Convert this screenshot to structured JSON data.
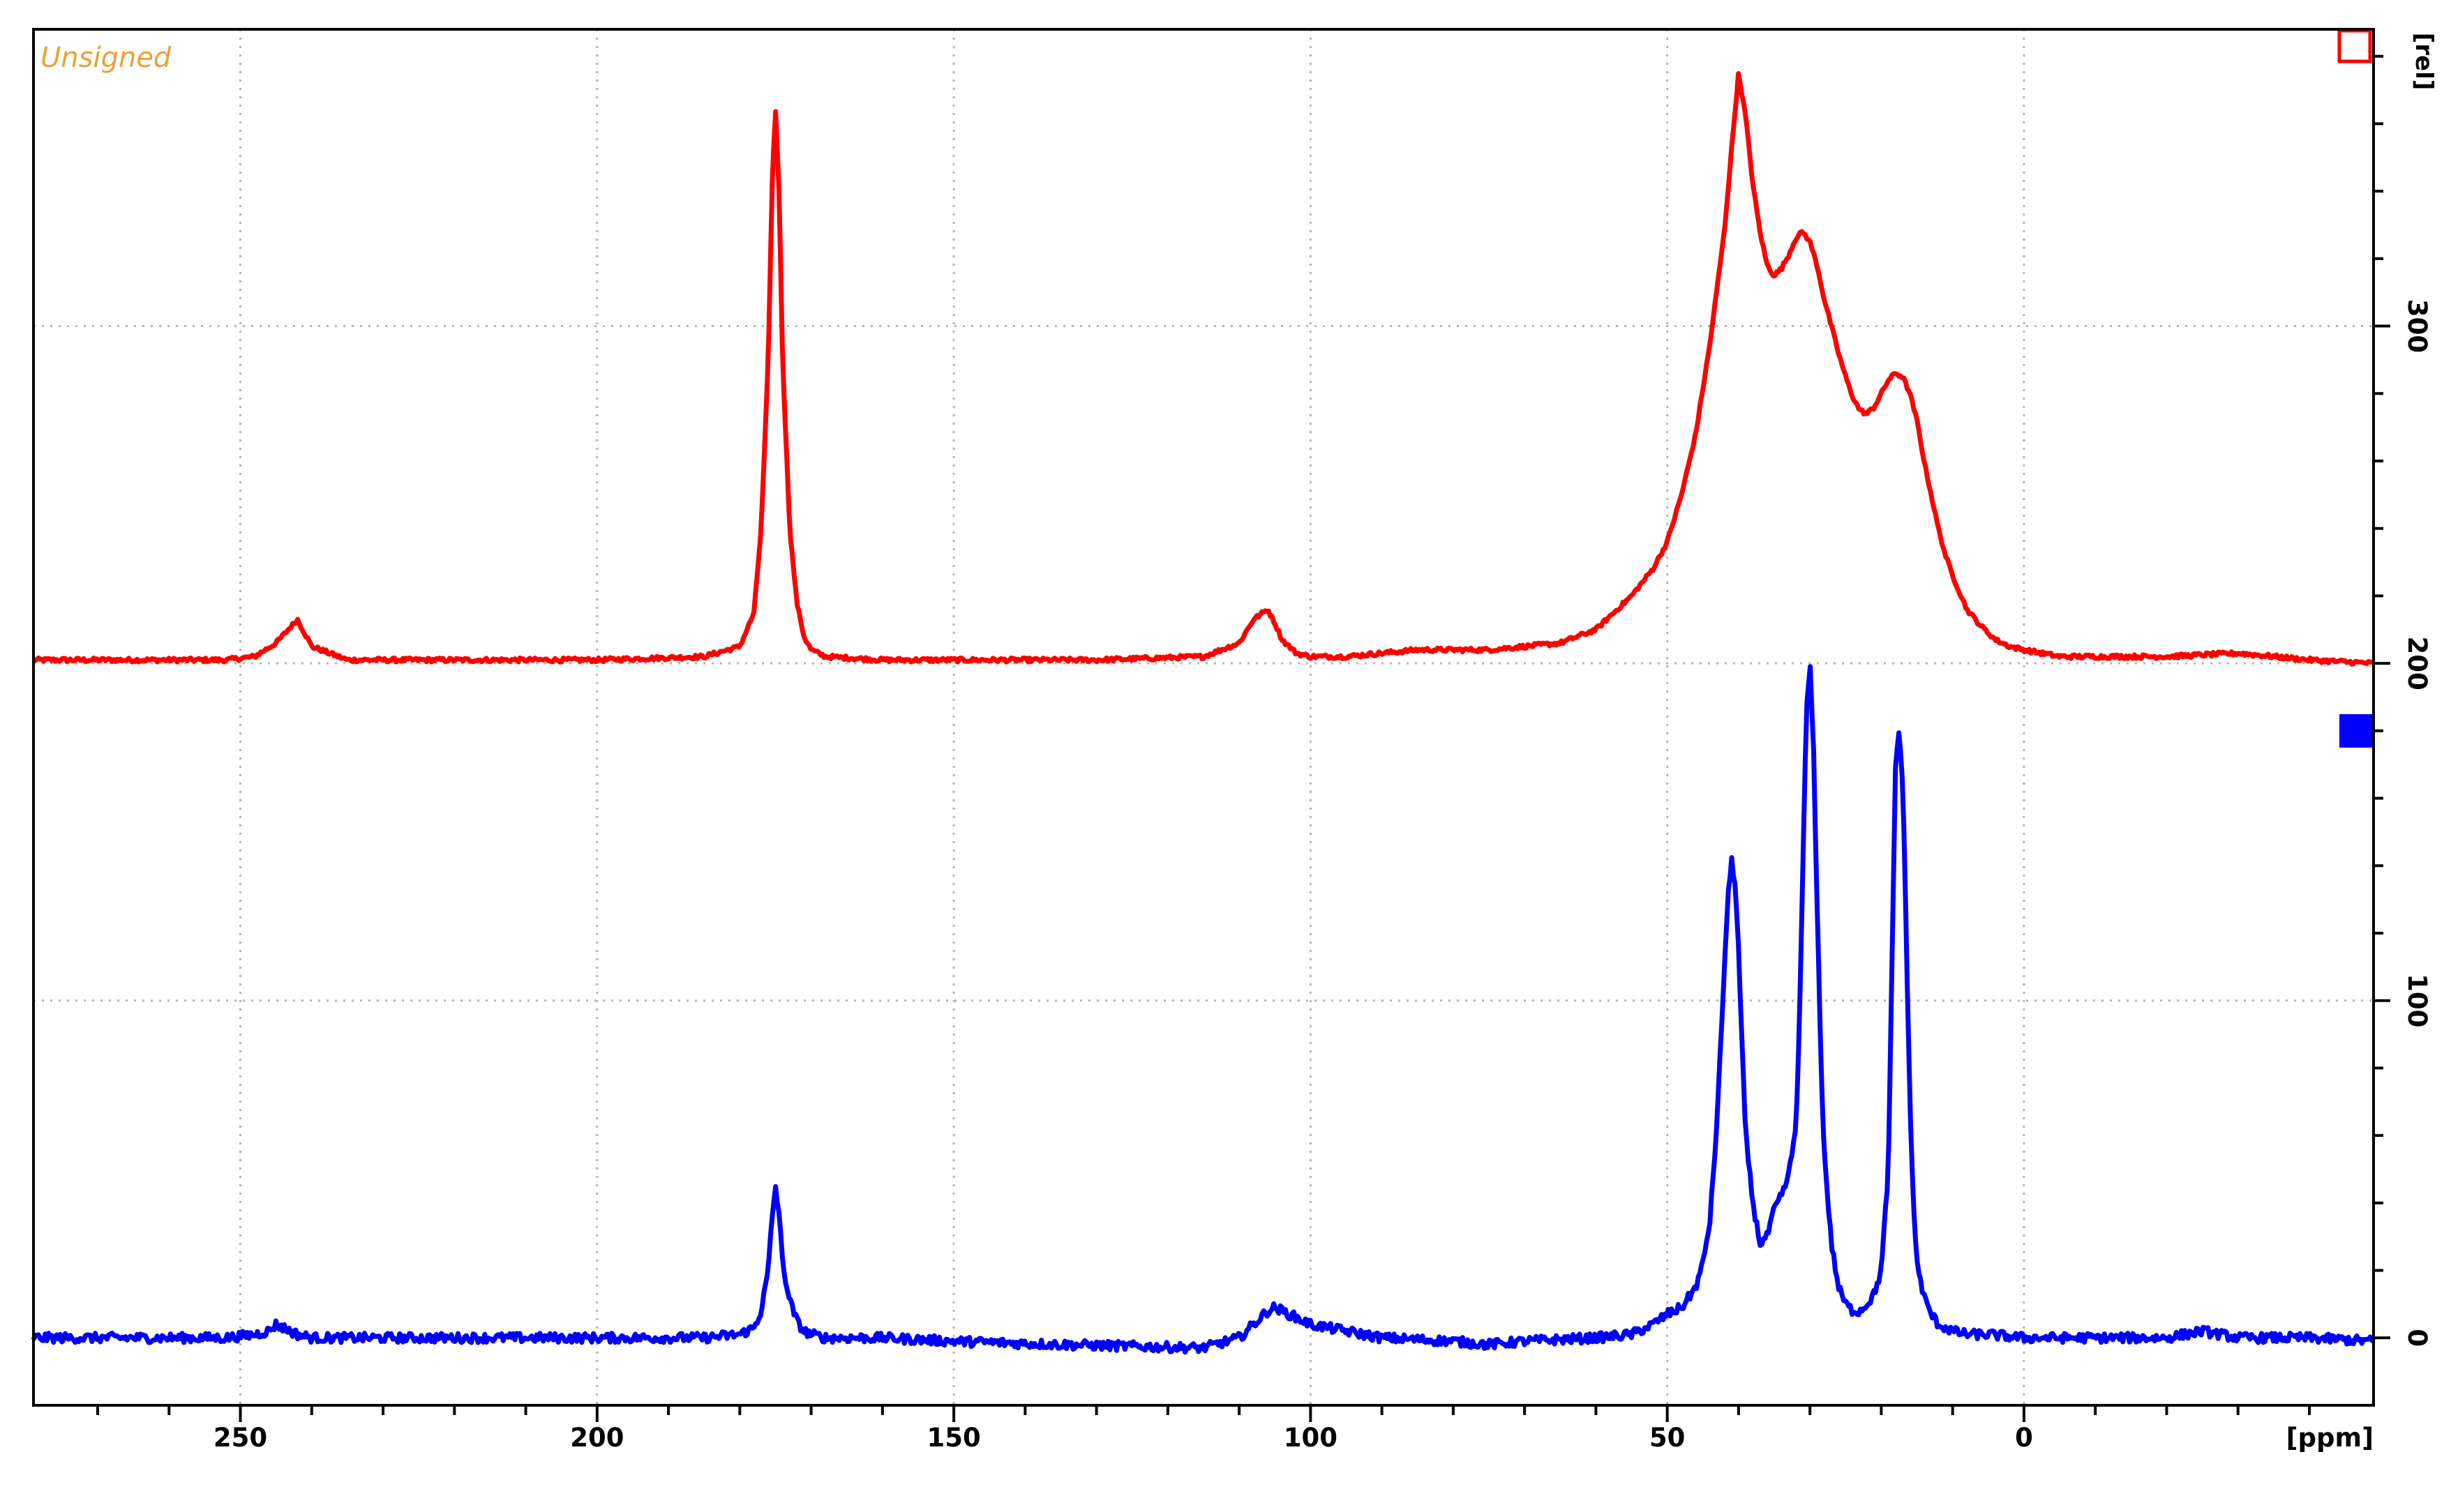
{
  "chart_data": {
    "type": "line",
    "corner_note": "Unsigned",
    "corner_note_color": "#e8a23a",
    "x_unit_label": "[ppm]",
    "y_unit_label": "[rel]",
    "x_axis": {
      "range": [
        279,
        -49
      ],
      "reversed": true,
      "major_ticks": [
        250,
        200,
        150,
        100,
        50,
        0
      ],
      "major_tick_labels": [
        "250",
        "200",
        "150",
        "100",
        "50",
        "0"
      ]
    },
    "y_axis": {
      "range": [
        -20,
        388
      ],
      "position": "right",
      "major_ticks": [
        0,
        100,
        200,
        300
      ],
      "major_tick_labels": [
        "0",
        "100",
        "200",
        "300"
      ]
    },
    "grid": true,
    "series": [
      {
        "color": "#ff0000",
        "marker": "hollow-square",
        "baseline": 200,
        "x": [
          279,
          260,
          252,
          248,
          245,
          242,
          240,
          235,
          220,
          200,
          185,
          180,
          178,
          177,
          176,
          175.5,
          175,
          174.5,
          174,
          173,
          172,
          171,
          170,
          168,
          160,
          150,
          130,
          115,
          110,
          108,
          106,
          105,
          104,
          102,
          100,
          95,
          90,
          85,
          80,
          75,
          70,
          65,
          60,
          55,
          52,
          50,
          48,
          46,
          44,
          42,
          41,
          40,
          39,
          38,
          37,
          36,
          35,
          34,
          33,
          32,
          31,
          30,
          29,
          28,
          27,
          26,
          25,
          24,
          23,
          22,
          21,
          20,
          19,
          18,
          17,
          16,
          15,
          14,
          13,
          12,
          11,
          10,
          9,
          8,
          6,
          4,
          2,
          0,
          -5,
          -10,
          -20,
          -30,
          -40,
          -49
        ],
        "y": [
          201,
          201,
          201,
          202,
          206,
          213,
          205,
          201,
          201,
          201,
          202,
          205,
          215,
          240,
          290,
          340,
          365,
          340,
          290,
          240,
          218,
          208,
          204,
          202,
          201,
          201,
          201,
          202,
          206,
          213,
          216,
          212,
          207,
          203,
          202,
          202,
          203,
          204,
          204,
          204,
          205,
          206,
          210,
          220,
          228,
          236,
          250,
          268,
          295,
          328,
          352,
          375,
          362,
          342,
          328,
          318,
          315,
          317,
          321,
          326,
          328,
          325,
          318,
          308,
          300,
          292,
          285,
          279,
          275,
          274,
          276,
          280,
          284,
          286,
          285,
          280,
          272,
          260,
          250,
          240,
          232,
          226,
          221,
          216,
          211,
          207,
          205,
          204,
          202,
          202,
          202,
          203,
          201,
          200
        ]
      },
      {
        "color": "#0000ff",
        "marker": "filled-square",
        "baseline": 0,
        "x": [
          279,
          260,
          252,
          248,
          246,
          245,
          244,
          242,
          240,
          235,
          220,
          200,
          185,
          180,
          178,
          177,
          176,
          175.5,
          175,
          174.5,
          174,
          173,
          172,
          171,
          170,
          168,
          160,
          150,
          135,
          115,
          110,
          108,
          106,
          105,
          104,
          102,
          100,
          95,
          90,
          80,
          75,
          70,
          60,
          55,
          52,
          50,
          48,
          46,
          45,
          44,
          43,
          42,
          41.5,
          41,
          40.5,
          40,
          39.5,
          39,
          38,
          37,
          36,
          35,
          34,
          33,
          32,
          31.5,
          31,
          30.5,
          30,
          29.5,
          29,
          28.5,
          28,
          27,
          26,
          25,
          24,
          23,
          22,
          21,
          20,
          19,
          18.5,
          18,
          17.5,
          17,
          16.5,
          16,
          15.5,
          15,
          14,
          13,
          12,
          11,
          10,
          8,
          5,
          0,
          -10,
          -20,
          -25,
          -30,
          -40,
          -49
        ],
        "y": [
          0,
          0,
          0,
          1,
          2,
          4,
          3,
          1,
          0,
          0,
          0,
          0,
          0,
          1,
          3,
          8,
          20,
          35,
          45,
          37,
          22,
          11,
          5,
          2,
          1,
          0,
          0,
          -1,
          -2,
          -3,
          0,
          4,
          8,
          9,
          8,
          6,
          4,
          2,
          0,
          -1,
          -2,
          -1,
          0,
          1,
          4,
          7,
          9,
          15,
          22,
          35,
          65,
          110,
          130,
          142,
          135,
          115,
          85,
          60,
          40,
          28,
          30,
          38,
          42,
          48,
          62,
          90,
          140,
          185,
          200,
          175,
          130,
          85,
          55,
          28,
          15,
          10,
          8,
          8,
          10,
          13,
          20,
          50,
          110,
          170,
          180,
          165,
          120,
          70,
          40,
          22,
          12,
          7,
          4,
          3,
          2,
          1,
          1,
          0,
          0,
          0,
          2,
          0,
          0,
          -1
        ]
      }
    ]
  }
}
